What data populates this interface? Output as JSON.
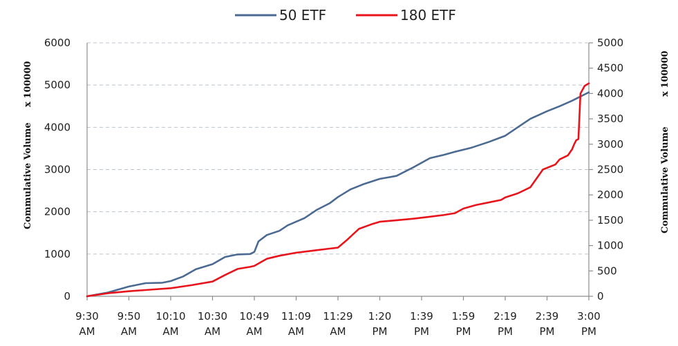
{
  "chart_data": {
    "type": "line",
    "title": "",
    "legend": {
      "placement": "top-center"
    },
    "x_tick_labels": [
      [
        "9:30",
        "AM"
      ],
      [
        "9:50",
        "AM"
      ],
      [
        "10:10",
        "AM"
      ],
      [
        "10:30",
        "AM"
      ],
      [
        "10:49",
        "AM"
      ],
      [
        "11:09",
        "AM"
      ],
      [
        "11:29",
        "AM"
      ],
      [
        "1:20",
        "PM"
      ],
      [
        "1:39",
        "PM"
      ],
      [
        "1:59",
        "PM"
      ],
      [
        "2:19",
        "PM"
      ],
      [
        "2:39",
        "PM"
      ],
      [
        "3:00",
        "PM"
      ]
    ],
    "y_left": {
      "label": "Commulative Volume",
      "multiplier": "x 100000",
      "ylim": [
        0,
        6000
      ],
      "ticks": [
        "0",
        "1000",
        "2000",
        "3000",
        "4000",
        "5000",
        "6000"
      ]
    },
    "y_right": {
      "label": "Commulative Volume",
      "multiplier": "x 100000",
      "ylim": [
        0,
        5000
      ],
      "ticks": [
        "0",
        "500",
        "1000",
        "1500",
        "2000",
        "2500",
        "3000",
        "3500",
        "4000",
        "4500",
        "5000"
      ]
    },
    "grid": true,
    "series": [
      {
        "name": "50 ETF",
        "axis": "left",
        "color": "#4a6a91",
        "x": [
          0,
          0.5,
          1,
          1.4,
          1.8,
          2,
          2.3,
          2.6,
          3,
          3.3,
          3.6,
          3.9,
          4,
          4.1,
          4.3,
          4.6,
          4.8,
          5.2,
          5.5,
          5.8,
          6,
          6.3,
          6.6,
          7,
          7.4,
          7.8,
          8.2,
          8.5,
          8.8,
          9.2,
          9.6,
          10,
          10.3,
          10.6,
          11,
          11.3,
          11.6,
          12
        ],
        "values": [
          0,
          90,
          230,
          310,
          320,
          360,
          470,
          640,
          760,
          930,
          990,
          1000,
          1050,
          1300,
          1450,
          1550,
          1680,
          1850,
          2050,
          2200,
          2350,
          2530,
          2650,
          2780,
          2850,
          3050,
          3270,
          3340,
          3420,
          3520,
          3650,
          3800,
          4000,
          4200,
          4380,
          4500,
          4630,
          4830
        ]
      },
      {
        "name": "180 ETF",
        "axis": "right",
        "color": "#e8141c",
        "x": [
          0,
          0.5,
          1,
          1.5,
          2,
          2.5,
          3,
          3.3,
          3.6,
          3.9,
          4,
          4.3,
          4.6,
          5,
          5.5,
          5.8,
          5.9,
          6,
          6.2,
          6.5,
          6.8,
          7,
          7.4,
          7.8,
          8.2,
          8.5,
          8.8,
          9,
          9.3,
          9.6,
          9.9,
          10,
          10.3,
          10.6,
          10.9,
          11.2,
          11.3,
          11.5,
          11.6,
          11.65,
          11.7,
          11.75,
          11.8,
          11.9,
          12
        ],
        "values": [
          0,
          60,
          100,
          130,
          160,
          220,
          290,
          420,
          540,
          580,
          600,
          740,
          800,
          860,
          910,
          940,
          950,
          960,
          1100,
          1330,
          1420,
          1470,
          1500,
          1530,
          1570,
          1600,
          1640,
          1730,
          1800,
          1850,
          1900,
          1950,
          2030,
          2150,
          2500,
          2600,
          2700,
          2780,
          2900,
          3000,
          3080,
          3100,
          4000,
          4150,
          4200
        ]
      }
    ]
  }
}
